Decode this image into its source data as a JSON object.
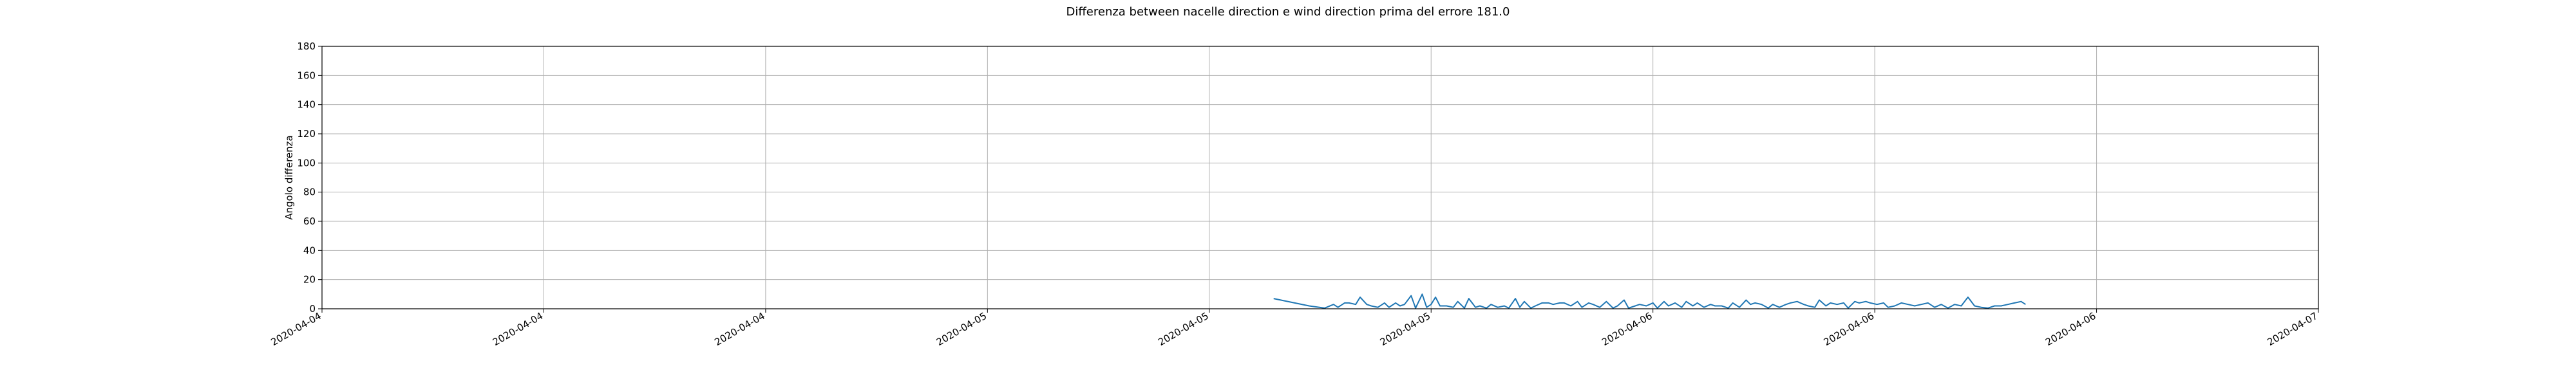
{
  "chart_data": {
    "type": "line",
    "title": "Differenza between nacelle direction e wind direction prima del errore 181.0",
    "xlabel": "",
    "ylabel": "Angolo differenza",
    "ylim": [
      0,
      180
    ],
    "y_ticks": [
      0,
      20,
      40,
      60,
      80,
      100,
      120,
      140,
      160,
      180
    ],
    "x_tick_labels": [
      "2020-04-04",
      "2020-04-04",
      "2020-04-04",
      "2020-04-05",
      "2020-04-05",
      "2020-04-05",
      "2020-04-06",
      "2020-04-06",
      "2020-04-06",
      "2020-04-07"
    ],
    "x_tick_positions": [
      0,
      1,
      2,
      3,
      4,
      5,
      6,
      7,
      8,
      9
    ],
    "xlim": [
      0,
      9
    ],
    "grid": true,
    "series_color": "#1f77b4",
    "series": [
      {
        "x": [
          4.29,
          4.45,
          4.52,
          4.56,
          4.58,
          4.61,
          4.63,
          4.66,
          4.68,
          4.71,
          4.73,
          4.76,
          4.79,
          4.81,
          4.84,
          4.86,
          4.88,
          4.91,
          4.93,
          4.96,
          4.98,
          5.0,
          5.02,
          5.04,
          5.07,
          5.1,
          5.12,
          5.15,
          5.17,
          5.2,
          5.22,
          5.25,
          5.27,
          5.3,
          5.33,
          5.35,
          5.38,
          5.4,
          5.42,
          5.45,
          5.47,
          5.5,
          5.53,
          5.55,
          5.58,
          5.6,
          5.63,
          5.66,
          5.68,
          5.71,
          5.73,
          5.76,
          5.79,
          5.82,
          5.84,
          5.87,
          5.89,
          5.92,
          5.94,
          5.97,
          6.0,
          6.02,
          6.05,
          6.07,
          6.1,
          6.13,
          6.15,
          6.18,
          6.2,
          6.23,
          6.26,
          6.28,
          6.31,
          6.34,
          6.36,
          6.39,
          6.42,
          6.44,
          6.46,
          6.49,
          6.52,
          6.54,
          6.57,
          6.6,
          6.62,
          6.65,
          6.68,
          6.7,
          6.73,
          6.75,
          6.78,
          6.8,
          6.83,
          6.86,
          6.88,
          6.91,
          6.93,
          6.96,
          6.98,
          7.01,
          7.04,
          7.06,
          7.09,
          7.12,
          7.15,
          7.18,
          7.21,
          7.24,
          7.27,
          7.3,
          7.33,
          7.36,
          7.39,
          7.42,
          7.45,
          7.48,
          7.51,
          7.54,
          7.57,
          7.6,
          7.63,
          7.66,
          7.68
        ],
        "y": [
          7,
          2,
          0.5,
          3,
          1,
          4,
          4,
          3,
          8,
          3,
          2,
          1,
          4,
          1,
          4,
          2,
          3,
          9,
          0.5,
          10,
          1,
          3,
          8,
          2,
          2,
          1,
          5,
          0.5,
          7,
          1,
          2,
          0.5,
          3,
          1,
          2,
          0.5,
          7,
          1,
          5,
          0.5,
          2,
          4,
          4,
          3,
          4,
          4,
          2,
          5,
          1,
          4,
          3,
          1,
          5,
          0.5,
          2,
          6,
          0.5,
          2,
          3,
          2,
          4,
          0.5,
          5,
          2,
          4,
          1,
          5,
          2,
          4,
          1,
          3,
          2,
          2,
          0.5,
          4,
          1,
          6,
          3,
          4,
          3,
          0.5,
          3,
          1,
          3,
          4,
          5,
          3,
          2,
          1,
          6,
          2,
          4,
          3,
          4,
          0.5,
          5,
          4,
          5,
          4,
          3,
          4,
          1,
          2,
          4,
          3,
          2,
          3,
          4,
          1,
          3,
          0.5,
          3,
          2,
          8,
          2,
          1,
          0.5,
          2,
          2,
          3,
          4,
          5,
          3
        ]
      }
    ]
  }
}
